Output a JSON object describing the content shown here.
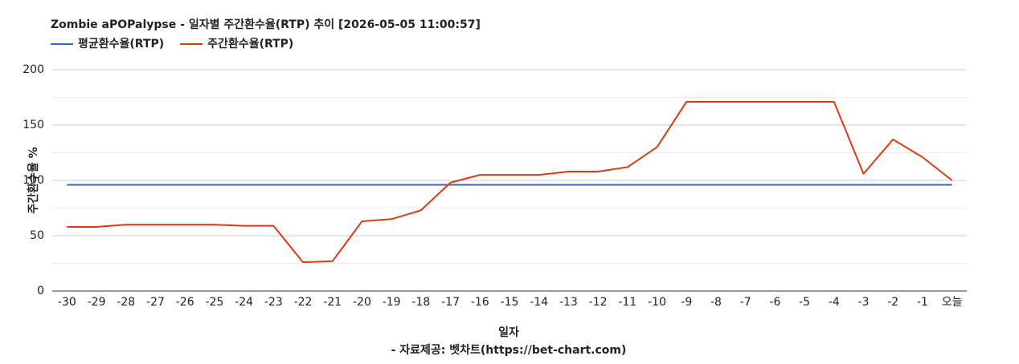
{
  "chart_data": {
    "type": "line",
    "title": "Zombie aPOPalypse - 일자별 주간환수율(RTP) 추이 [2026-05-05 11:00:57]",
    "x_label": "일자",
    "y_label": "주간환수율 %",
    "source": "- 자료제공: 벳차트(https://bet-chart.com)",
    "categories": [
      "-30",
      "-29",
      "-28",
      "-27",
      "-26",
      "-25",
      "-24",
      "-23",
      "-22",
      "-21",
      "-20",
      "-19",
      "-18",
      "-17",
      "-16",
      "-15",
      "-14",
      "-13",
      "-12",
      "-11",
      "-10",
      "-9",
      "-8",
      "-7",
      "-6",
      "-5",
      "-4",
      "-3",
      "-2",
      "-1",
      "오늘"
    ],
    "series": [
      {
        "name": "평균환수율(RTP)",
        "color": "#3366cc",
        "values": [
          96,
          96,
          96,
          96,
          96,
          96,
          96,
          96,
          96,
          96,
          96,
          96,
          96,
          96,
          96,
          96,
          96,
          96,
          96,
          96,
          96,
          96,
          96,
          96,
          96,
          96,
          96,
          96,
          96,
          96,
          96
        ]
      },
      {
        "name": "주간환수율(RTP)",
        "color": "#dc3912",
        "values": [
          58,
          58,
          60,
          60,
          60,
          60,
          59,
          59,
          26,
          27,
          63,
          65,
          73,
          98,
          105,
          105,
          105,
          108,
          108,
          112,
          130,
          171,
          171,
          171,
          171,
          171,
          171,
          106,
          137,
          121,
          100
        ]
      }
    ],
    "ylim": [
      0,
      200
    ],
    "yticks": [
      0,
      50,
      100,
      150,
      200
    ],
    "minor_yticks": [
      25,
      75,
      125,
      175
    ],
    "grid": true,
    "legend": "top-left"
  }
}
